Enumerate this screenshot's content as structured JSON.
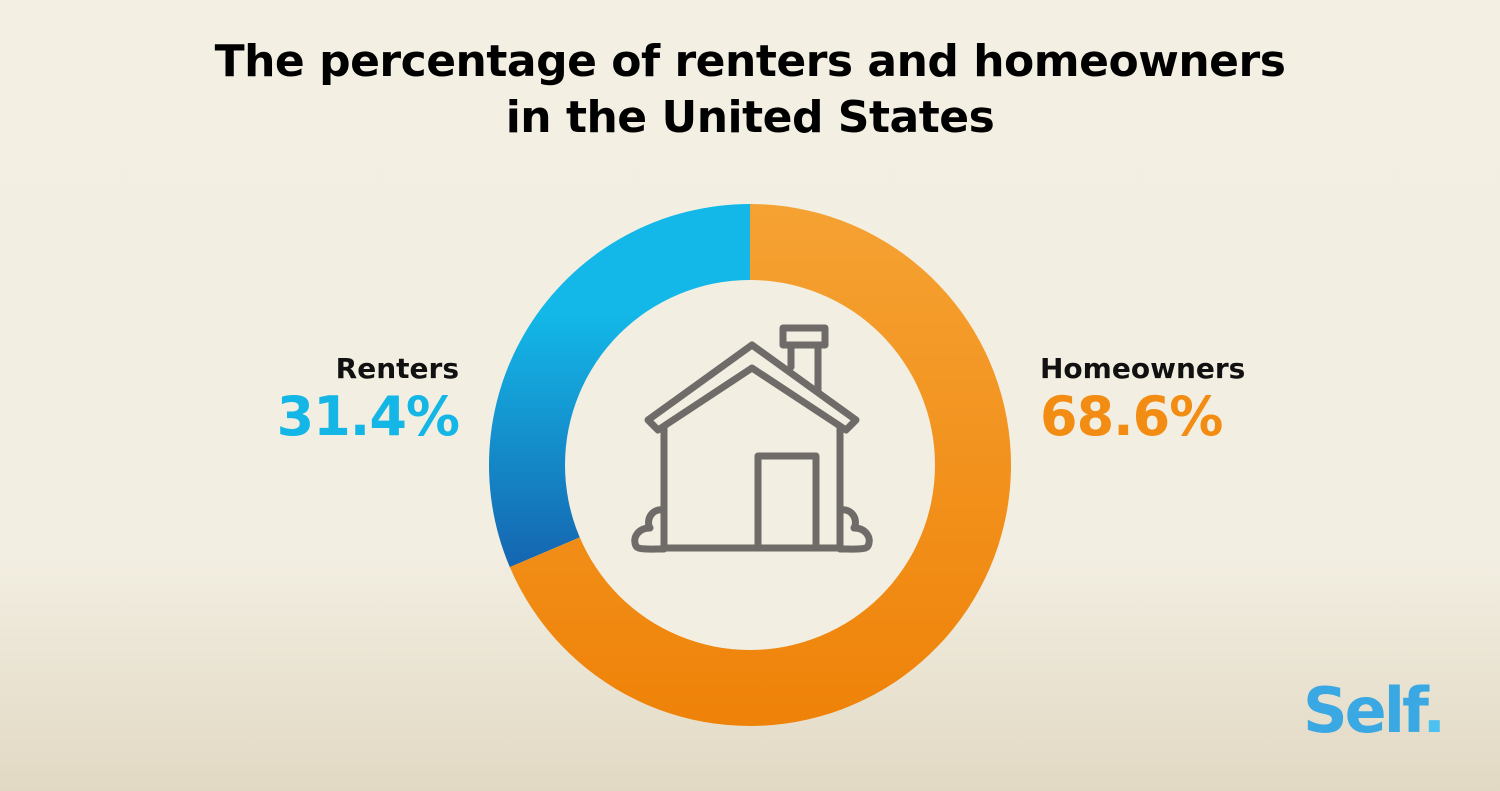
{
  "title_lines": [
    "The percentage of renters and homeowners",
    "in the United States"
  ],
  "chart_data": {
    "type": "pie",
    "variant": "donut",
    "title": "The percentage of renters and homeowners in the United States",
    "categories": [
      "Renters",
      "Homeowners"
    ],
    "values": [
      31.4,
      68.6
    ],
    "value_labels": [
      "31.4%",
      "68.6%"
    ],
    "colors": [
      "#14b6e6",
      "#f28c12"
    ],
    "gradient_colors": [
      [
        "#13b8e8",
        "#1565b0"
      ],
      [
        "#f5a233",
        "#ef8208"
      ]
    ],
    "center_icon": "house-icon"
  },
  "logo": "Self."
}
